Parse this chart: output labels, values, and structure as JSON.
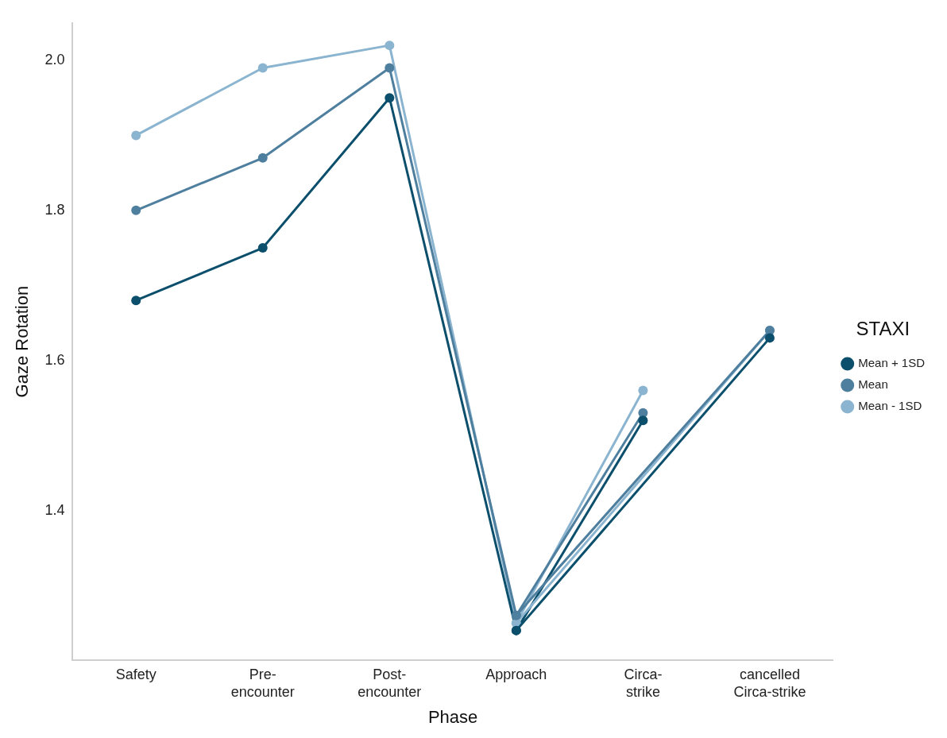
{
  "chart_data": {
    "type": "line",
    "xlabel": "Phase",
    "ylabel": "Gaze Rotation",
    "legend_title": "STAXI",
    "legend": "right",
    "grid": false,
    "marker": "circle",
    "line_style": "solid",
    "categories": [
      "Safety",
      "Pre-\nencounter",
      "Post-\nencounter",
      "Approach",
      "Circa-\nstrike",
      "cancelled\nCirca-strike"
    ],
    "ylim": [
      1.2,
      2.05
    ],
    "yticks": [
      1.4,
      1.6,
      1.8,
      {
        "value": 2,
        "label": "2.0"
      }
    ],
    "series": [
      {
        "type": "line",
        "color": "#0b4f6c",
        "values": [
          null,
          null,
          null,
          1.24,
          null,
          1.63
        ]
      },
      {
        "type": "line",
        "color": "#4f7f9f",
        "values": [
          null,
          null,
          null,
          1.26,
          null,
          1.64
        ]
      },
      {
        "type": "line",
        "color": "#8ab4cf",
        "values": [
          null,
          null,
          null,
          1.25,
          null,
          1.64
        ]
      },
      {
        "type": "line",
        "name": "Mean + 1SD",
        "color": "#0b4f6c",
        "values": [
          1.68,
          1.75,
          1.95,
          1.24,
          1.52,
          null
        ]
      },
      {
        "type": "line",
        "name": "Mean",
        "color": "#4f7f9f",
        "values": [
          1.8,
          1.87,
          1.99,
          1.26,
          1.53,
          null
        ]
      },
      {
        "type": "line",
        "name": "Mean - 1SD",
        "color": "#8ab4cf",
        "values": [
          1.9,
          1.99,
          2.02,
          1.25,
          1.56,
          null
        ]
      }
    ]
  }
}
